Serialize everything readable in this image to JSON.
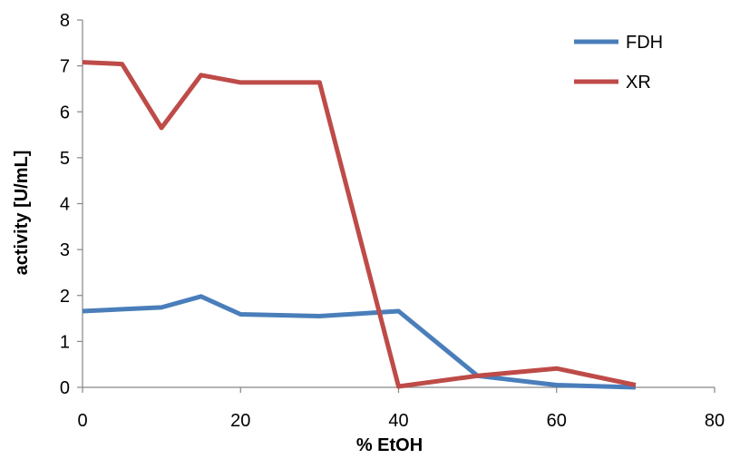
{
  "chart_data": {
    "type": "line",
    "xlabel": "% EtOH",
    "ylabel": "activity [U/mL]",
    "xlim": [
      0,
      80
    ],
    "ylim": [
      0,
      8
    ],
    "xticks": [
      "0",
      "20",
      "40",
      "60",
      "80"
    ],
    "yticks": [
      "0",
      "1",
      "2",
      "3",
      "4",
      "5",
      "6",
      "7",
      "8"
    ],
    "grid": false,
    "legend_position": "top-right",
    "series": [
      {
        "name": "FDH",
        "color": "#4a7ebb",
        "x": [
          0,
          10,
          15,
          20,
          30,
          40,
          50,
          60,
          70
        ],
        "y": [
          1.66,
          1.74,
          1.98,
          1.59,
          1.55,
          1.66,
          0.25,
          0.05,
          0.0
        ]
      },
      {
        "name": "XR",
        "color": "#be4b48",
        "x": [
          0,
          5,
          10,
          15,
          20,
          30,
          40,
          50,
          60,
          70
        ],
        "y": [
          7.08,
          7.04,
          5.65,
          6.8,
          6.64,
          6.64,
          0.02,
          0.25,
          0.41,
          0.05
        ]
      }
    ]
  }
}
